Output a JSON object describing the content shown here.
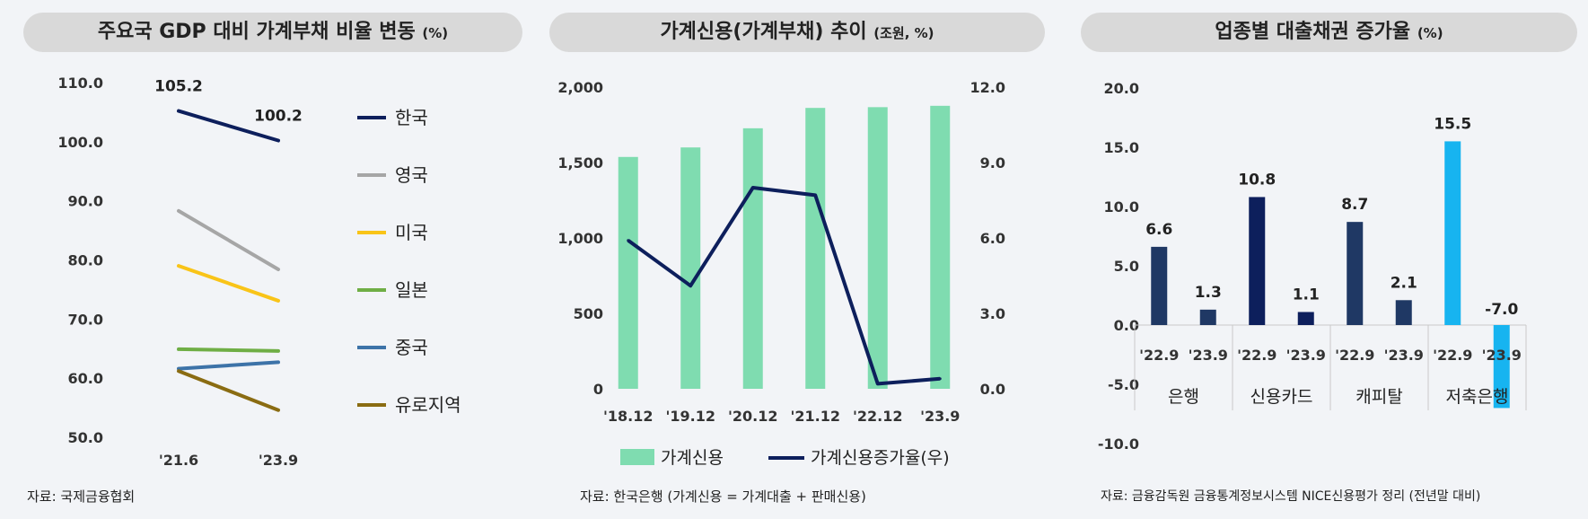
{
  "panels": [
    {
      "title": "주요국 GDP 대비 가계부채 비율 변동",
      "unit": "(%)",
      "source": "자료: 국제금융협회"
    },
    {
      "title": "가계신용(가계부채) 추이",
      "unit": "(조원, %)",
      "source": "자료: 한국은행 (가계신용 = 가계대출 + 판매신용)"
    },
    {
      "title": "업종별 대출채권 증가율",
      "unit": "(%)",
      "source": "자료: 금융감독원 금융통계정보시스템 NICE신용평가 정리 (전년말 대비)"
    }
  ],
  "chart_data": [
    {
      "type": "line",
      "x": [
        "'21.6",
        "'23.9"
      ],
      "ylim": [
        50,
        110
      ],
      "yticks": [
        "110.0",
        "100.0",
        "90.0",
        "80.0",
        "70.0",
        "60.0",
        "50.0"
      ],
      "series": [
        {
          "name": "한국",
          "values": [
            105.2,
            100.2
          ],
          "color": "#0d1f5c",
          "labels": [
            "105.2",
            "100.2"
          ]
        },
        {
          "name": "영국",
          "values": [
            88.3,
            78.4
          ],
          "color": "#a6a6a6"
        },
        {
          "name": "미국",
          "values": [
            79.0,
            73.1
          ],
          "color": "#f9c418"
        },
        {
          "name": "일본",
          "values": [
            64.9,
            64.6
          ],
          "color": "#6fae45"
        },
        {
          "name": "중국",
          "values": [
            61.6,
            62.7
          ],
          "color": "#3d73a8"
        },
        {
          "name": "유로지역",
          "values": [
            61.2,
            54.6
          ],
          "color": "#8a6c12"
        }
      ]
    },
    {
      "type": "bar",
      "categories": [
        "'18.12",
        "'19.12",
        "'20.12",
        "'21.12",
        "'22.12",
        "'23.9"
      ],
      "ylim": [
        0,
        2000
      ],
      "yticks": [
        "2,000",
        "1,500",
        "1,000",
        "500",
        "0"
      ],
      "y2lim": [
        0,
        12
      ],
      "y2ticks": [
        "12.0",
        "9.0",
        "6.0",
        "3.0",
        "0.0"
      ],
      "series": [
        {
          "name": "가계신용",
          "type": "bar",
          "axis": "left",
          "values": [
            1537,
            1600,
            1727,
            1862,
            1867,
            1876
          ],
          "color": "#7fdcb0"
        },
        {
          "name": "가계신용증가율(우)",
          "type": "line",
          "axis": "right",
          "values": [
            5.9,
            4.1,
            8.0,
            7.7,
            0.2,
            0.4
          ],
          "color": "#0d1f5c"
        }
      ]
    },
    {
      "type": "bar",
      "categories": [
        "'22.9",
        "'23.9",
        "'22.9",
        "'23.9",
        "'22.9",
        "'23.9",
        "'22.9",
        "'23.9"
      ],
      "groups": [
        "은행",
        "신용카드",
        "캐피탈",
        "저축은행"
      ],
      "values": [
        6.6,
        1.3,
        10.8,
        1.1,
        8.7,
        2.1,
        15.5,
        -7.0
      ],
      "labels": [
        "6.6",
        "1.3",
        "10.8",
        "1.1",
        "8.7",
        "2.1",
        "15.5",
        "-7.0"
      ],
      "colors": [
        "#1f3864",
        "#1f3864",
        "#0d1f5c",
        "#0d1f5c",
        "#1f3864",
        "#1f3864",
        "#17b4f0",
        "#17b4f0"
      ],
      "ylim": [
        -10,
        20
      ],
      "yticks": [
        "20.0",
        "15.0",
        "10.0",
        "5.0",
        "0.0",
        "-5.0",
        "-10.0"
      ]
    }
  ]
}
